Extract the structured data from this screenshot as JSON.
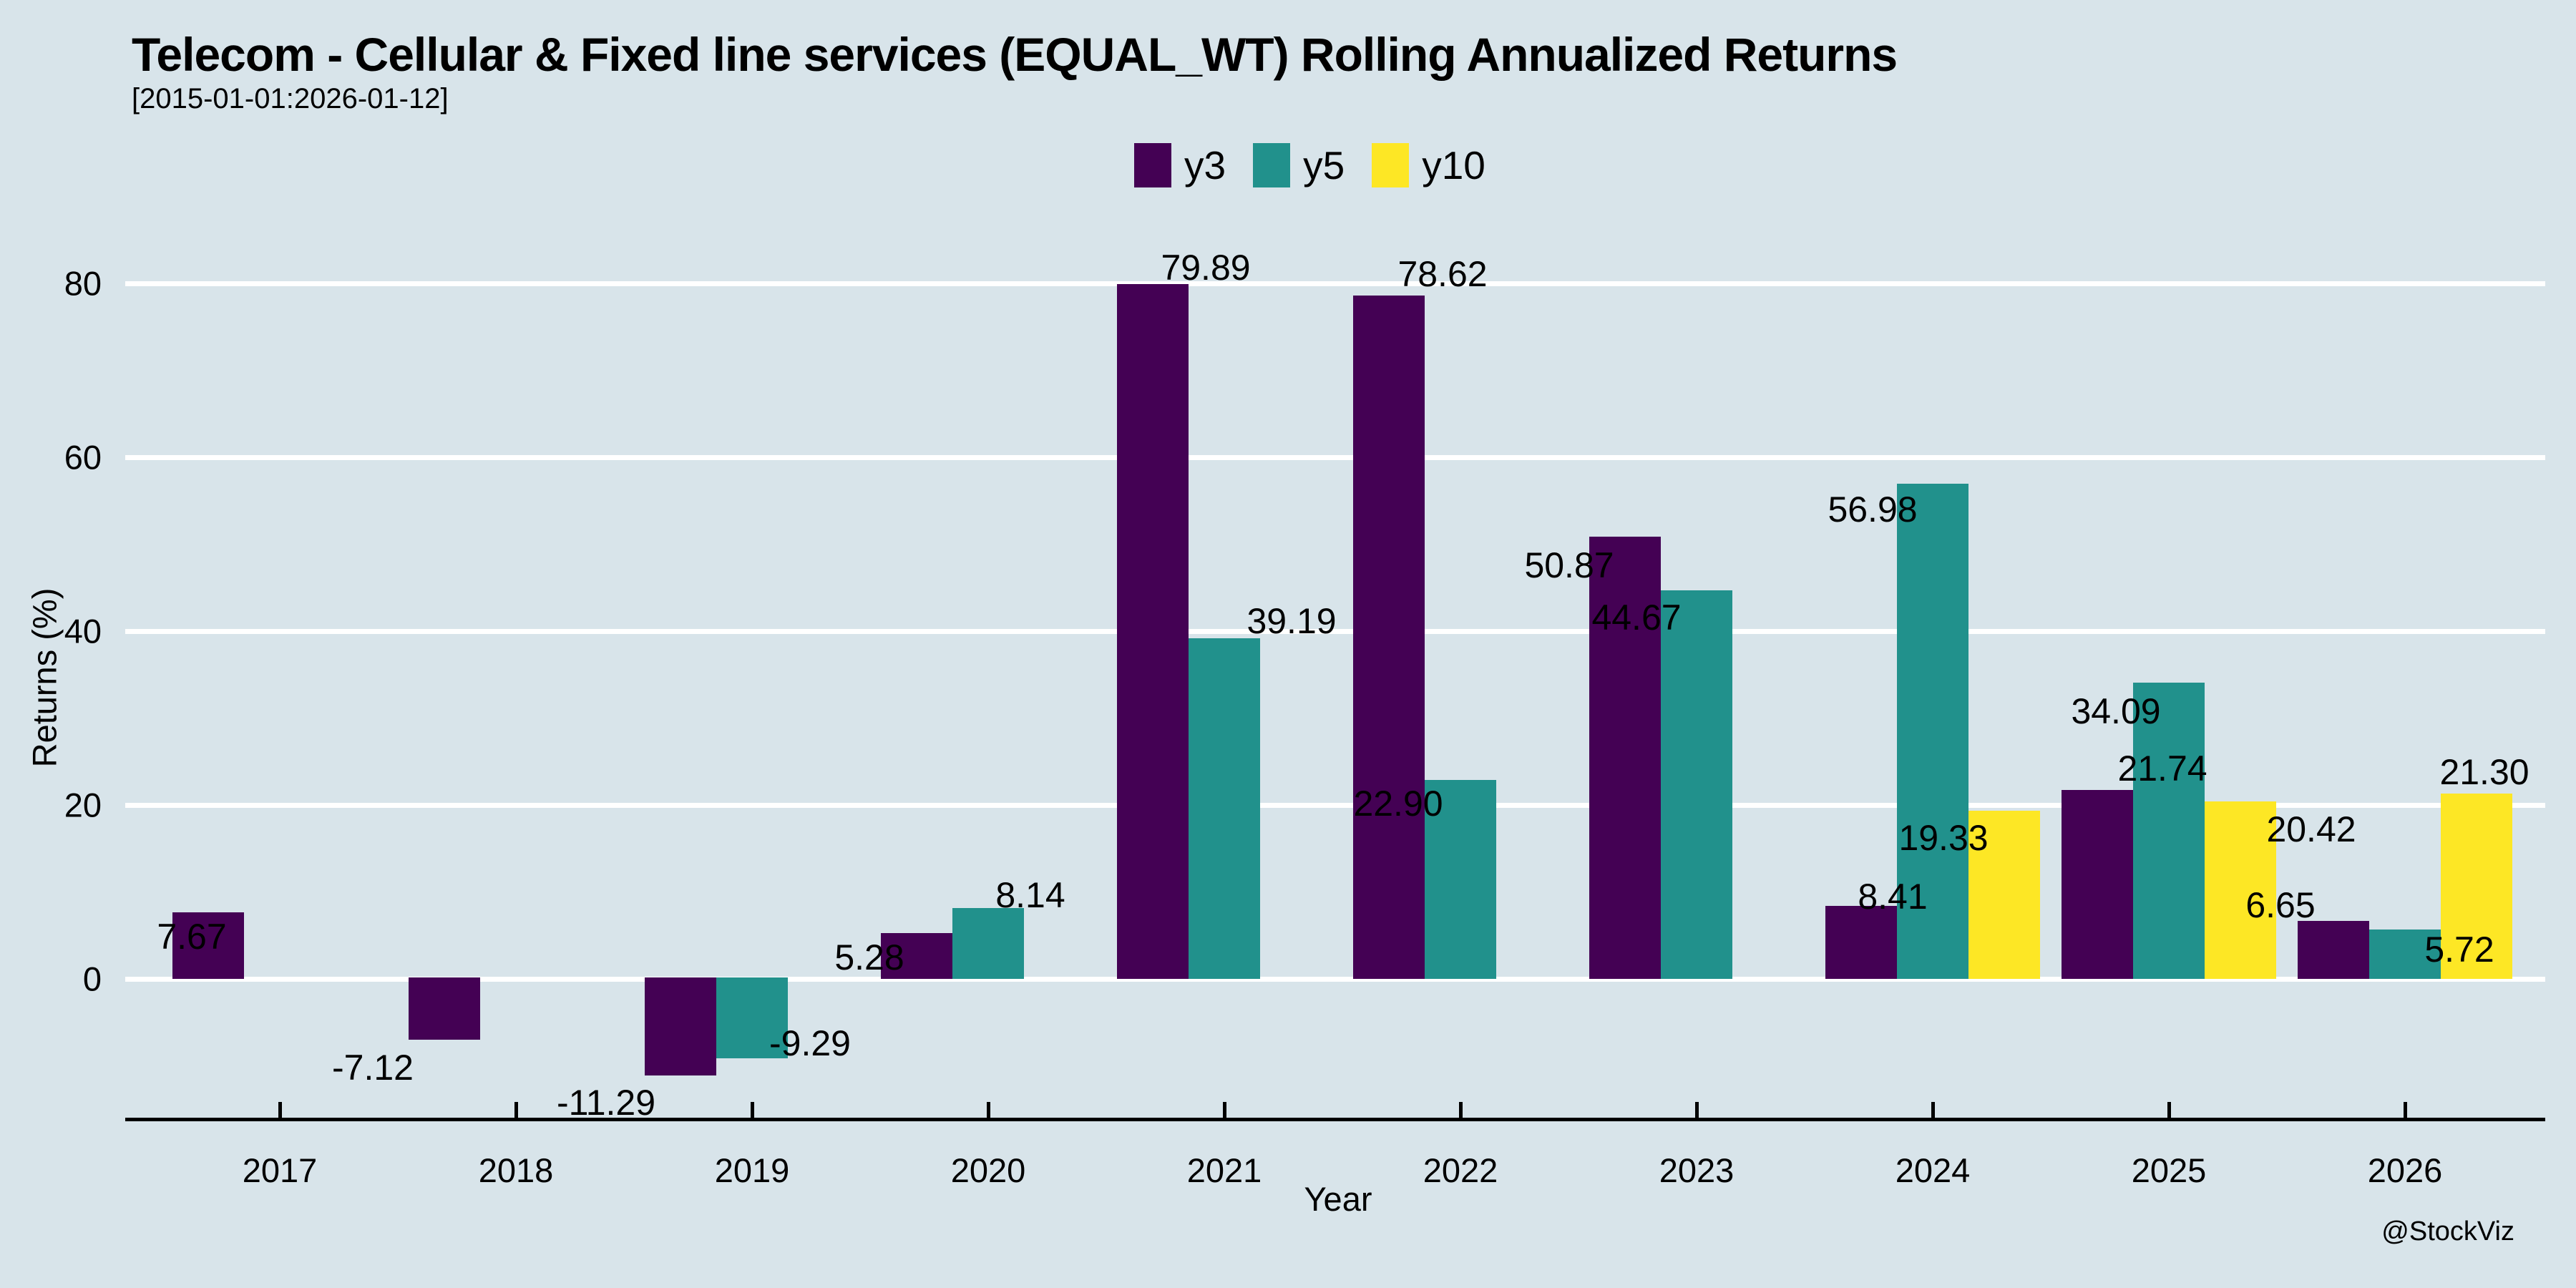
{
  "watermark": "@StockViz",
  "colors": {
    "background": "#d8e4ea",
    "grid": "#ffffff",
    "axis": "#000000"
  },
  "chart_data": {
    "type": "bar",
    "title": "Telecom - Cellular & Fixed line services (EQUAL_WT) Rolling Annualized Returns",
    "subtitle": "[2015-01-01:2026-01-12]",
    "xlabel": "Year",
    "ylabel": "Returns (%)",
    "categories": [
      "2017",
      "2018",
      "2019",
      "2020",
      "2021",
      "2022",
      "2023",
      "2024",
      "2025",
      "2026"
    ],
    "series": [
      {
        "name": "y3",
        "color": "#440154",
        "values": [
          7.67,
          -7.12,
          -11.29,
          5.28,
          79.89,
          78.62,
          50.87,
          8.41,
          21.74,
          6.65
        ]
      },
      {
        "name": "y5",
        "color": "#21918c",
        "values": [
          null,
          null,
          -9.29,
          8.14,
          39.19,
          22.9,
          44.67,
          56.98,
          34.09,
          5.72
        ]
      },
      {
        "name": "y10",
        "color": "#fde725",
        "values": [
          null,
          null,
          null,
          null,
          null,
          null,
          null,
          19.33,
          20.42,
          21.3
        ]
      }
    ],
    "yticks": [
      0,
      20,
      40,
      60,
      80
    ],
    "ylim": [
      -16.3,
      84.5
    ],
    "grid": "horizontal-white-behind-bars",
    "legend_position": "top-center",
    "bar_label_decimals": 2
  }
}
